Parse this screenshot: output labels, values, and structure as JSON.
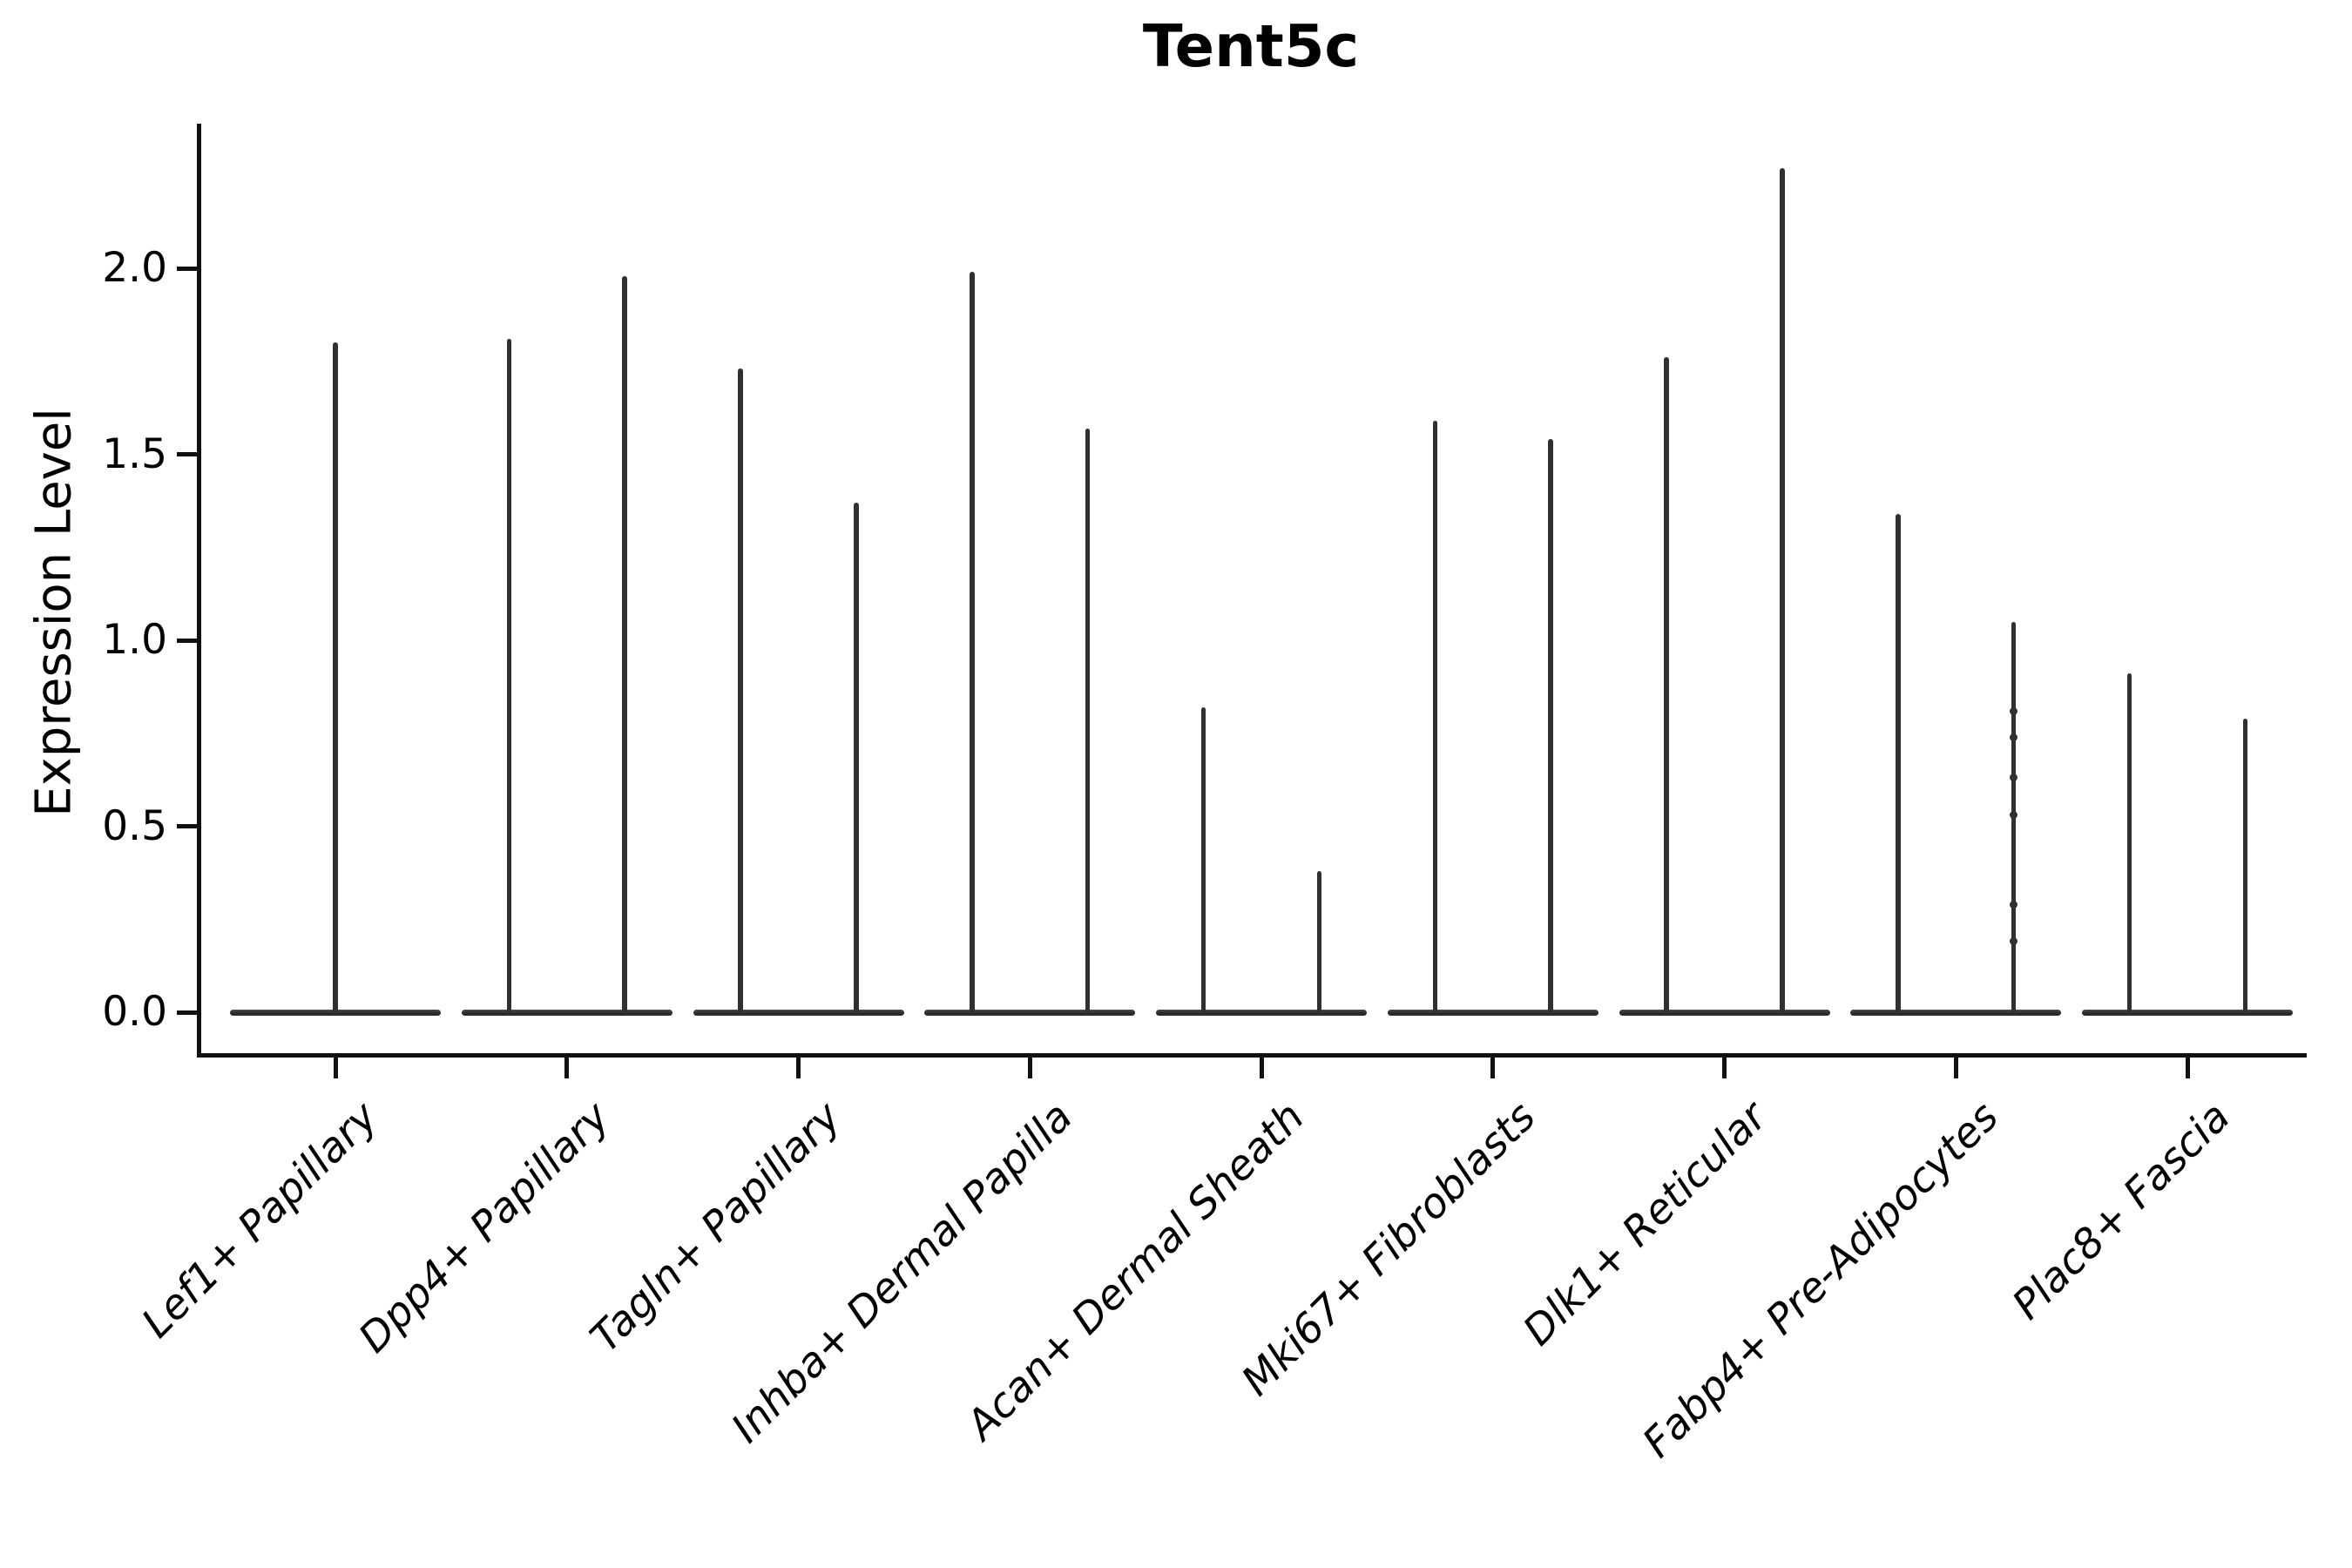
{
  "chart_data": {
    "type": "violin",
    "title": "Tent5c",
    "ylabel": "Expression Level",
    "xlabel": "",
    "categories": [
      "Lef1+ Papillary",
      "Dpp4+ Papillary",
      "Tagln+ Papillary",
      "Inhba+ Dermal Papilla",
      "Acan+ Dermal Sheath",
      "Mki67+ Fibroblasts",
      "Dlk1+ Reticular",
      "Fabp4+ Pre-Adipocytes",
      "Plac8+ Fascia"
    ],
    "violins": [
      {
        "category": "Lef1+ Papillary",
        "group_max": [
          1.8
        ]
      },
      {
        "category": "Dpp4+ Papillary",
        "group_max": [
          1.81,
          1.98
        ]
      },
      {
        "category": "Tagln+ Papillary",
        "group_max": [
          1.73,
          1.37
        ]
      },
      {
        "category": "Inhba+ Dermal Papilla",
        "group_max": [
          1.99,
          1.57
        ]
      },
      {
        "category": "Acan+ Dermal Sheath",
        "group_max": [
          0.82,
          0.38
        ]
      },
      {
        "category": "Mki67+ Fibroblasts",
        "group_max": [
          1.59,
          1.54
        ]
      },
      {
        "category": "Dlk1+ Reticular",
        "group_max": [
          1.76,
          2.27
        ]
      },
      {
        "category": "Fabp4+ Pre-Adipocytes",
        "group_max": [
          1.34,
          1.05
        ],
        "right_bumps": [
          0.81,
          0.74,
          0.63,
          0.53,
          0.29,
          0.19
        ]
      },
      {
        "category": "Plac8+ Fascia",
        "group_max": [
          0.91,
          0.79
        ]
      }
    ],
    "baseline_value": 0.0,
    "yticks": [
      0.0,
      0.5,
      1.0,
      1.5,
      2.0
    ],
    "ytick_labels": [
      "0.0",
      "0.5",
      "1.0",
      "1.5",
      "2.0"
    ],
    "ylim": [
      -0.12,
      2.39
    ],
    "grid": false,
    "legend": null,
    "xticklabel_rotation_deg": 45,
    "xticklabel_style": "italic",
    "colors": {
      "violin": "#303030",
      "axis": "#111111",
      "text": "#000000",
      "background": "#ffffff"
    }
  }
}
